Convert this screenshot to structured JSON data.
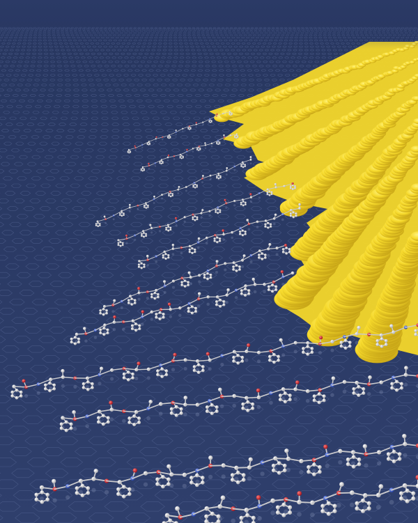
{
  "image": {
    "subject": "molecular-chains-on-graphene-lattice",
    "colors": {
      "background": "#2b3a66",
      "lattice": "#5d6e9c",
      "surface_yellow": "#f4d72a",
      "surface_yellow_dark": "#c9a812",
      "surface_highlight": "#fff48a",
      "atom_carbon": "#e8e8ea",
      "atom_oxygen": "#d8202a",
      "atom_nitrogen": "#3a5fd0",
      "bond": "#c9c9cc"
    }
  }
}
